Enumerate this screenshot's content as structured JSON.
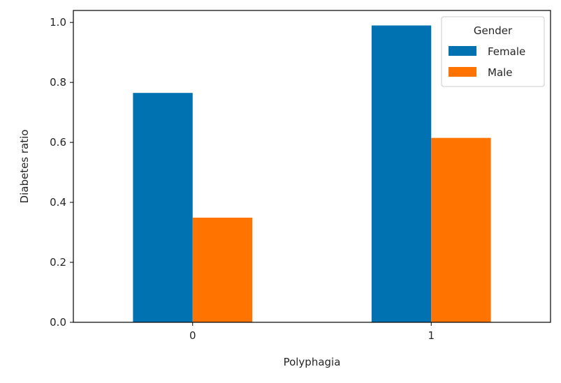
{
  "chart_data": {
    "type": "bar",
    "categories": [
      "0",
      "1"
    ],
    "series": [
      {
        "name": "Female",
        "color": "#0072b2",
        "values": [
          0.765,
          0.99
        ]
      },
      {
        "name": "Male",
        "color": "#ff7300",
        "values": [
          0.349,
          0.615
        ]
      }
    ],
    "xlabel": "Polyphagia",
    "ylabel": "Diabetes ratio",
    "ylim": [
      0.0,
      1.04
    ],
    "yticks": [
      0.0,
      0.2,
      0.4,
      0.6,
      0.8,
      1.0
    ],
    "ytick_labels": [
      "0.0",
      "0.2",
      "0.4",
      "0.6",
      "0.8",
      "1.0"
    ],
    "legend": {
      "title": "Gender",
      "placement": "top-right"
    },
    "grid": false
  }
}
